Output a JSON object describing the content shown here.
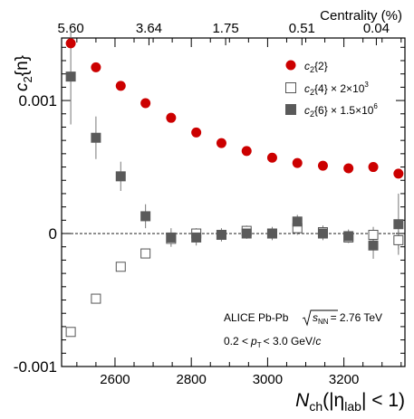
{
  "chart_data": {
    "type": "scatter",
    "x_axis": {
      "label_main": "N",
      "label_sub": "ch",
      "label_rest_1": "(|η",
      "label_sub2": "lab",
      "label_rest_2": "| < 1)",
      "range": [
        2460,
        3360
      ],
      "ticks": [
        2600,
        2800,
        3000,
        3200
      ],
      "tick_labels": [
        "2600",
        "2800",
        "3000",
        "3200"
      ]
    },
    "top_axis": {
      "title": "Centrality (%)",
      "tick_labels": [
        "5.60",
        "3.64",
        "1.75",
        "0.51",
        "0.04"
      ],
      "tick_x": [
        2484,
        2689,
        2890,
        3090,
        3285
      ]
    },
    "y_axis": {
      "label_main": "c",
      "label_sub": "2",
      "label_rest": "{n}",
      "range": [
        -0.001,
        0.00147
      ],
      "ticks": [
        -0.001,
        0,
        0.001
      ],
      "tick_labels": [
        "-0.001",
        "0",
        "0.001"
      ]
    },
    "reference_line": 0,
    "series": [
      {
        "name": "c2{2}",
        "label_main": "c",
        "label_sub": "2",
        "label_rest": "{2}",
        "marker": "circle",
        "color": "#cc0000",
        "x": [
          2484,
          2550,
          2615,
          2680,
          2747,
          2813,
          2879,
          2945,
          3012,
          3078,
          3145,
          3212,
          3277,
          3343
        ],
        "y": [
          0.00143,
          0.00125,
          0.00111,
          0.00098,
          0.00087,
          0.00076,
          0.00068,
          0.00062,
          0.00057,
          0.00053,
          0.00051,
          0.00049,
          0.0005,
          0.00045
        ],
        "err": [
          0,
          0,
          0,
          0,
          0,
          0,
          0,
          0,
          0,
          0,
          0,
          0,
          0,
          0
        ]
      },
      {
        "name": "c2{4} × 2×10^3",
        "label_main": "c",
        "label_sub": "2",
        "label_rest": "{4} × 2×10",
        "label_sup": "3",
        "marker": "open-square",
        "color": "#555555",
        "x": [
          2484,
          2550,
          2615,
          2680,
          2747,
          2813,
          2879,
          2945,
          3012,
          3078,
          3145,
          3212,
          3277,
          3343
        ],
        "y": [
          -0.00074,
          -0.00049,
          -0.00025,
          -0.00015,
          -4e-05,
          0.0,
          -1e-05,
          2e-05,
          0.0,
          4e-05,
          1e-05,
          -3e-05,
          -1e-05,
          -5e-05
        ],
        "err": [
          0,
          0,
          0,
          0,
          0,
          4e-05,
          3e-05,
          4e-05,
          5e-05,
          5e-05,
          5e-05,
          4e-05,
          6e-05,
          7e-05
        ]
      },
      {
        "name": "c2{6} × 1.5×10^6",
        "label_main": "c",
        "label_sub": "2",
        "label_rest": "{6} × 1.5×10",
        "label_sup": "6",
        "marker": "filled-square",
        "color": "#5a5a5a",
        "x": [
          2484,
          2550,
          2615,
          2680,
          2747,
          2813,
          2879,
          2945,
          3012,
          3078,
          3145,
          3212,
          3277,
          3343
        ],
        "y": [
          0.00118,
          0.00072,
          0.00043,
          0.00013,
          -3e-05,
          -3e-05,
          -1e-05,
          0.0,
          0.0,
          9e-05,
          0.0,
          -2e-05,
          -9e-05,
          7e-05
        ],
        "err": [
          0.00036,
          0.00016,
          0.00011,
          9e-05,
          7e-05,
          6e-05,
          5e-05,
          4e-05,
          4e-05,
          5e-05,
          5e-05,
          5e-05,
          0.0001,
          0.00023
        ]
      }
    ],
    "legend": {
      "placement": "top-right"
    },
    "annotations": {
      "line1_prefix": "ALICE Pb-Pb",
      "line1_s": "s",
      "line1_sub": "NN",
      "line1_suffix": "= 2.76 TeV",
      "line2_prefix": "0.2 <",
      "line2_p": "p",
      "line2_sub": "T",
      "line2_mid": "< 3.0 GeV/",
      "line2_c": "c"
    }
  }
}
